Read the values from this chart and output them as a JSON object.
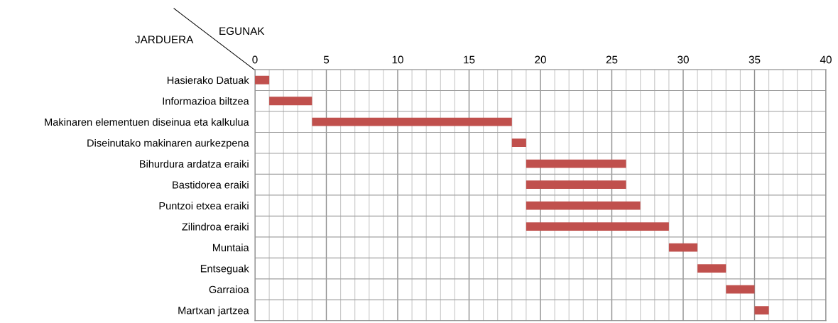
{
  "chart_data": {
    "type": "bar",
    "orientation": "horizontal",
    "xlabel": "EGUNAK",
    "ylabel": "JARDUERA",
    "categories": [
      "Hasierako Datuak",
      "Informazioa biltzea",
      "Makinaren elementuen diseinua eta kalkulua",
      "Diseinutako makinaren aurkezpena",
      "Bihurdura ardatza eraiki",
      "Bastidorea eraiki",
      "Puntzoi etxea eraiki",
      "Zilindroa eraiki",
      "Muntaia",
      "Entseguak",
      "Garraioa",
      "Martxan jartzea"
    ],
    "base": [
      0,
      1,
      4,
      18,
      19,
      19,
      19,
      19,
      29,
      31,
      33,
      35
    ],
    "values": [
      1,
      3,
      14,
      1,
      7,
      7,
      8,
      10,
      2,
      2,
      2,
      1
    ],
    "color": "#c0504d",
    "xlim": [
      0,
      40
    ],
    "xticks": [
      0,
      5,
      10,
      15,
      20,
      25,
      30,
      35,
      40
    ],
    "grid": true
  }
}
